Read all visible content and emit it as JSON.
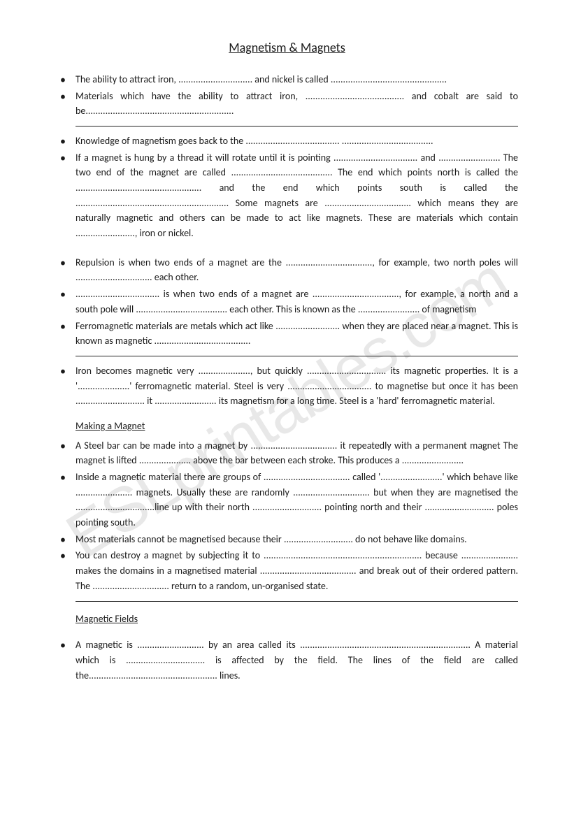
{
  "title": "Magnetism & Magnets",
  "watermark": "ESLprintables.com",
  "section1": [
    "The ability to attract iron, .............................. and nickel is called ...............................................",
    "Materials which have the ability to attract iron, ........................................ and cobalt are said to be............................................................"
  ],
  "section2": [
    "Knowledge of magnetism goes back to the ...................................... .....................................",
    "If a magnet is hung by a thread it will rotate until it is pointing .................................. and ......................... The two end of the magnet are called ......................................... The end which points north is called the ................................................... and the end which points south is called the .............................................................. Some magnets are ................................... which means they are naturally magnetic and others can be made to act like magnets. These are materials which contain ........................, iron or nickel."
  ],
  "section3": [
    "Repulsion is when two ends of a magnet are the ..................................., for example, two north poles will ............................... each other.",
    ".................................. is when two ends of a magnet are ..................................., for example, a north and a south pole will ..................................... each other. This is known as the ......................... of magnetism",
    "Ferromagnetic materials are metals which act like .......................... when they are placed near a magnet. This is known as magnetic ......................................."
  ],
  "section4": [
    "Iron becomes magnetic very ....................., but quickly ................................ its magnetic properties. It is a '.....................' ferromagnetic material. Steel is very .................................. to magnetise but once it has been ............................ it ......................... its magnetism for a long time. Steel is a 'hard' ferromagnetic material."
  ],
  "makingHeading": "Making a Magnet",
  "making": [
    "A Steel bar can be made into a magnet by ................................... it repeatedly with a permanent magnet The magnet is lifted ..................... above the bar between each stroke. This produces a .........................",
    "Inside a magnetic material there are groups of ................................... called '.........................' which behave like ....................... magnets. Usually these are randomly ............................... but when they are magnetised the ................................line up with their north ............................ pointing north and their ............................ poles pointing south.",
    "Most materials cannot be magnetised because their ............................ do not behave like domains.",
    "You can destroy a magnet by subjecting it to ................................................................ because ....................... makes the domains in a magnetised material ....................................... and break out of their ordered pattern. The ............................... return to a random, un-organised state."
  ],
  "fieldsHeading": "Magnetic Fields",
  "fields": [
    "A magnetic is ........................... by an area called its ..................................................................... A material which is ................................ is affected by the field. The lines of the field are called the.................................................... lines."
  ]
}
